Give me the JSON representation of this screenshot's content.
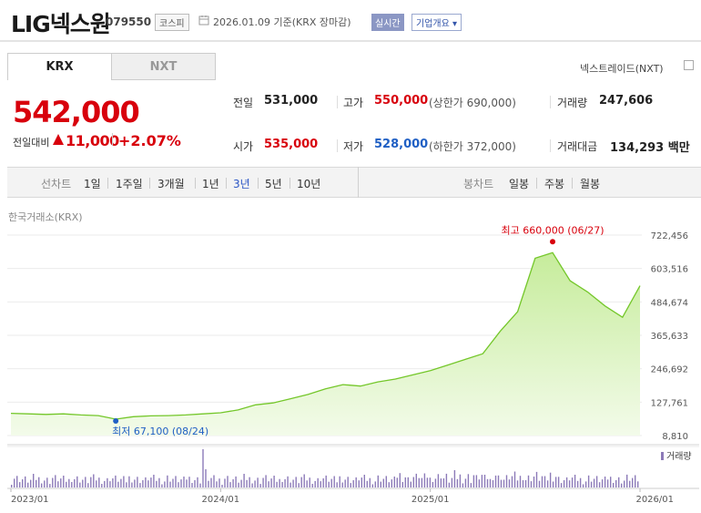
{
  "header": {
    "title": "LIG넥스원",
    "code": "079550",
    "market": "코스피",
    "date": "2026.01.09",
    "basis": "기준(KRX 장마감)",
    "live_label": "실시간",
    "company_label": "기업개요 ▾"
  },
  "tabs": [
    "KRX",
    "NXT"
  ],
  "nxt_link": "넥스트레이드(NXT)",
  "price": {
    "current": "542,000",
    "change_label": "전일대비",
    "change_amount": "11,000",
    "change_pct": "+2.07%"
  },
  "quotes": {
    "prev_close_label": "전일",
    "prev_close": "531,000",
    "high_label": "고가",
    "high": "550,000",
    "high_sub": "(상한가 690,000)",
    "volume_label": "거래량",
    "volume": "247,606",
    "open_label": "시가",
    "open": "535,000",
    "low_label": "저가",
    "low": "528,000",
    "low_sub": "(하한가 372,000)",
    "value_label": "거래대금",
    "value": "134,293",
    "value_unit": "백만"
  },
  "toolbar": {
    "line_label": "선차트",
    "line_periods": [
      "1일",
      "1주일",
      "3개월",
      "1년",
      "3년",
      "5년",
      "10년"
    ],
    "selected_period": "3년",
    "candle_label": "봉차트",
    "candle_periods": [
      "일봉",
      "주봉",
      "월봉"
    ]
  },
  "chart_source_label": "한국거래소(KRX)",
  "colors": {
    "up": "#d8000c",
    "down": "#1f5fc4",
    "line": "#74c72a",
    "volume": "#8c7ab8"
  },
  "chart_data": {
    "type": "area",
    "ylim": [
      8810,
      722456
    ],
    "yticks": [
      "722,456",
      "603,516",
      "484,674",
      "365,633",
      "246,692",
      "127,761",
      "8,810"
    ],
    "xticks": [
      "2023/01",
      "2024/01",
      "2025/01",
      "2026/01"
    ],
    "x_months": [
      0,
      1,
      2,
      3,
      4,
      5,
      6,
      7,
      8,
      9,
      10,
      11,
      12,
      13,
      14,
      15,
      16,
      17,
      18,
      19,
      20,
      21,
      22,
      23,
      24,
      25,
      26,
      27,
      28,
      29,
      30,
      31,
      32,
      33,
      34,
      35,
      36
    ],
    "series": [
      {
        "values": [
          88000,
          86000,
          84000,
          86000,
          82000,
          80000,
          67100,
          76000,
          79000,
          80000,
          82000,
          86000,
          90000,
          100000,
          118000,
          125000,
          140000,
          155000,
          175000,
          190000,
          185000,
          200000,
          210000,
          225000,
          240000,
          260000,
          280000,
          300000,
          380000,
          450000,
          640000,
          660000,
          560000,
          520000,
          470000,
          430000,
          542000
        ]
      }
    ],
    "high_annotation": "최고 660,000 (06/27)",
    "low_annotation": "최저 67,100 (08/24)",
    "volume_label": "거래량"
  }
}
